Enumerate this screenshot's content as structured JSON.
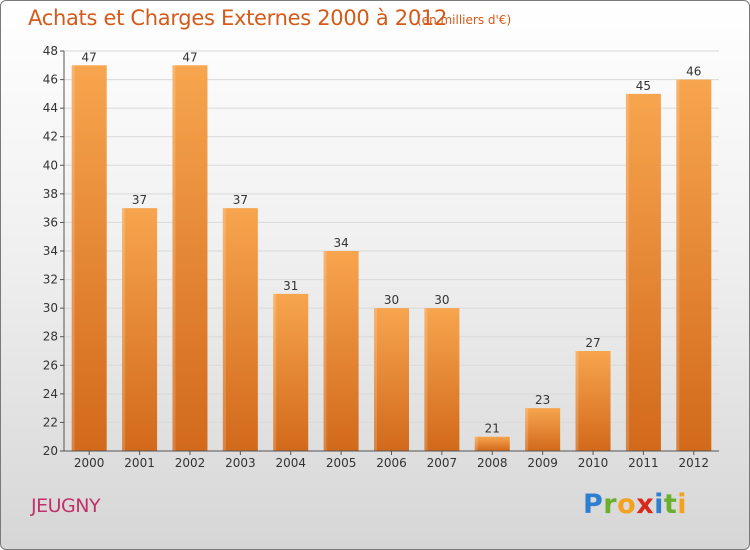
{
  "header": {
    "title": "Achats et Charges Externes 2000 à 2012",
    "unit": "(en milliers d'€)"
  },
  "footer": {
    "commune": "JEUGNY",
    "logo_letters": [
      {
        "ch": "P",
        "color": "#2f7fd0"
      },
      {
        "ch": "r",
        "color": "#6ab02c"
      },
      {
        "ch": "o",
        "color": "#f2a21c"
      },
      {
        "ch": "x",
        "color": "#d8281c"
      },
      {
        "ch": "i",
        "color": "#2f7fd0"
      },
      {
        "ch": "t",
        "color": "#6ab02c"
      },
      {
        "ch": "i",
        "color": "#f2a21c"
      }
    ]
  },
  "chart_data": {
    "type": "bar",
    "categories": [
      "2000",
      "2001",
      "2002",
      "2003",
      "2004",
      "2005",
      "2006",
      "2007",
      "2008",
      "2009",
      "2010",
      "2011",
      "2012"
    ],
    "values": [
      47,
      37,
      47,
      37,
      31,
      34,
      30,
      30,
      21,
      23,
      27,
      45,
      46
    ],
    "ylim": [
      20,
      48
    ],
    "yticks": [
      20,
      22,
      24,
      26,
      28,
      30,
      32,
      34,
      36,
      38,
      40,
      42,
      44,
      46,
      48
    ],
    "grid": true,
    "bar_color_light": "#f7a54e",
    "bar_color_dark": "#d2691b",
    "title": "Achats et Charges Externes 2000 à 2012"
  }
}
